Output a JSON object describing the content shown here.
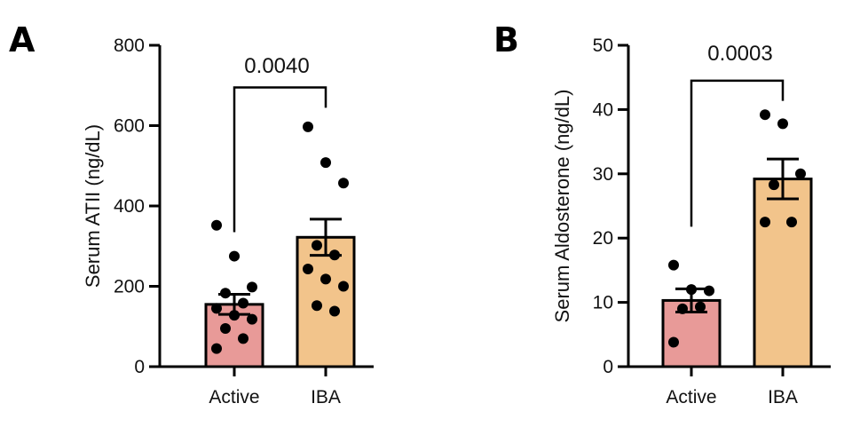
{
  "chart_data": [
    {
      "type": "bar",
      "panel_label": "A",
      "ylabel": "Serum ATII (ng/dL)",
      "xlabel": "",
      "ylim": [
        0,
        800
      ],
      "yticks": [
        0,
        200,
        400,
        600,
        800
      ],
      "categories": [
        "Active",
        "IBA"
      ],
      "values": [
        155,
        322
      ],
      "sem": [
        25,
        45
      ],
      "bar_colors": [
        "#e89a98",
        "#f2c48b"
      ],
      "points": [
        [
          352,
          275,
          198,
          183,
          158,
          145,
          128,
          118,
          95,
          70,
          45
        ],
        [
          597,
          508,
          457,
          302,
          278,
          243,
          218,
          200,
          152,
          138
        ]
      ],
      "comparison": {
        "label": "0.0040",
        "between": [
          "Active",
          "IBA"
        ],
        "y": 695
      },
      "grid": false,
      "legend": "none"
    },
    {
      "type": "bar",
      "panel_label": "B",
      "ylabel": "Serum Aldosterone (ng/dL)",
      "xlabel": "",
      "ylim": [
        0,
        50
      ],
      "yticks": [
        0,
        10,
        20,
        30,
        40,
        50
      ],
      "categories": [
        "Active",
        "IBA"
      ],
      "values": [
        10.3,
        29.2
      ],
      "sem": [
        1.8,
        3.1
      ],
      "bar_colors": [
        "#e89a98",
        "#f2c48b"
      ],
      "points": [
        [
          15.8,
          12.0,
          11.8,
          9.0,
          9.3,
          3.8
        ],
        [
          39.2,
          37.8,
          30.0,
          28.3,
          22.5,
          22.5
        ]
      ],
      "comparison": {
        "label": "0.0003",
        "between": [
          "Active",
          "IBA"
        ],
        "y": 44.5
      },
      "grid": false,
      "legend": "none"
    }
  ]
}
